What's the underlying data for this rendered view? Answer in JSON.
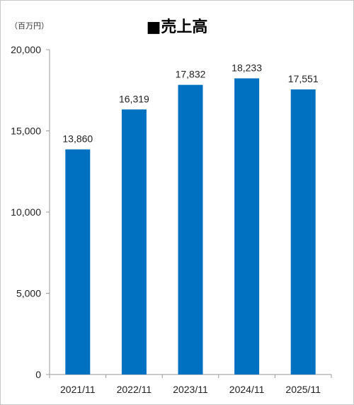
{
  "chart_data": {
    "type": "bar",
    "title": "■売上高",
    "unit_label": "（百万円）",
    "categories": [
      "2021/11",
      "2022/11",
      "2023/11",
      "2024/11",
      "2025/11"
    ],
    "values": [
      13860,
      16319,
      17832,
      18233,
      17551
    ],
    "value_labels": [
      "13,860",
      "16,319",
      "17,832",
      "18,233",
      "17,551"
    ],
    "yticks": [
      "0",
      "5,000",
      "10,000",
      "15,000",
      "20,000"
    ],
    "ylim": [
      0,
      20000
    ],
    "xlabel": "",
    "ylabel": "",
    "grid": false,
    "bar_color": "#0070c0"
  }
}
